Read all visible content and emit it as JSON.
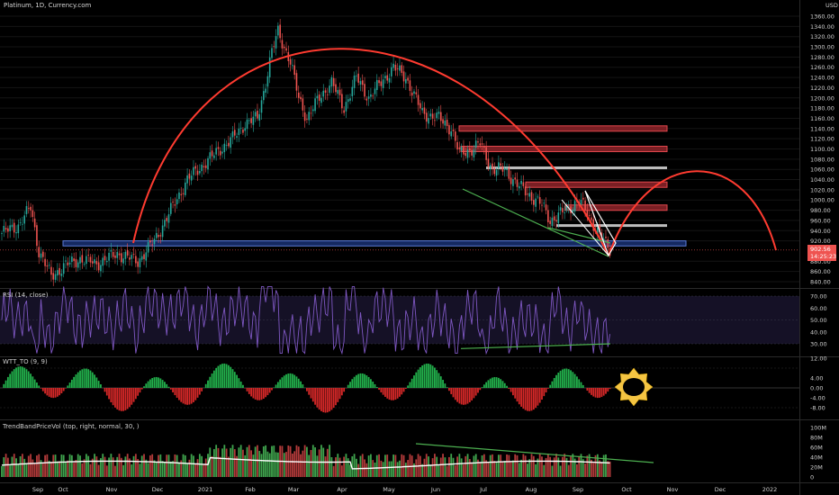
{
  "chart_data": {
    "title": "Platinum, 1D, Currency.com",
    "currency": "USD",
    "type": "candlestick",
    "time_labels": [
      "Sep",
      "Oct",
      "Nov",
      "Dec",
      "2021",
      "Feb",
      "Mar",
      "Apr",
      "May",
      "Jun",
      "Jul",
      "Aug",
      "Sep",
      "Oct",
      "Nov",
      "Dec",
      "2022"
    ],
    "price_ticks": [
      1360,
      1340,
      1320,
      1300,
      1280,
      1260,
      1240,
      1220,
      1200,
      1180,
      1160,
      1140,
      1120,
      1100,
      1080,
      1060,
      1040,
      1020,
      1000,
      980,
      960,
      940,
      920,
      880,
      860,
      840
    ],
    "last_price": "902.56",
    "countdown": "14:25:23",
    "price_anchors": [
      [
        0,
        935
      ],
      [
        8,
        950
      ],
      [
        14,
        985
      ],
      [
        18,
        900
      ],
      [
        24,
        850
      ],
      [
        30,
        870
      ],
      [
        38,
        885
      ],
      [
        46,
        875
      ],
      [
        56,
        895
      ],
      [
        66,
        880
      ],
      [
        74,
        920
      ],
      [
        82,
        980
      ],
      [
        90,
        1040
      ],
      [
        98,
        1070
      ],
      [
        106,
        1100
      ],
      [
        112,
        1120
      ],
      [
        118,
        1150
      ],
      [
        124,
        1160
      ],
      [
        128,
        1230
      ],
      [
        131,
        1290
      ],
      [
        134,
        1330
      ],
      [
        137,
        1300
      ],
      [
        140,
        1270
      ],
      [
        144,
        1200
      ],
      [
        148,
        1160
      ],
      [
        154,
        1200
      ],
      [
        160,
        1230
      ],
      [
        166,
        1180
      ],
      [
        172,
        1240
      ],
      [
        178,
        1200
      ],
      [
        184,
        1230
      ],
      [
        190,
        1260
      ],
      [
        196,
        1240
      ],
      [
        204,
        1170
      ],
      [
        212,
        1160
      ],
      [
        218,
        1140
      ],
      [
        222,
        1090
      ],
      [
        228,
        1100
      ],
      [
        232,
        1110
      ],
      [
        238,
        1060
      ],
      [
        244,
        1060
      ],
      [
        250,
        1030
      ],
      [
        256,
        1010
      ],
      [
        262,
        990
      ],
      [
        266,
        960
      ],
      [
        272,
        975
      ],
      [
        280,
        1000
      ],
      [
        286,
        960
      ],
      [
        292,
        918
      ],
      [
        295,
        902
      ]
    ],
    "levels": {
      "red_zones": [
        1140,
        1100,
        1030,
        985
      ],
      "white_lines": [
        1063,
        950
      ],
      "blue_support": [
        910,
        920
      ],
      "current_line": 902
    },
    "rsi": {
      "title": "RSI (14, close)",
      "ticks": [
        70,
        60,
        50,
        40,
        30
      ],
      "upper_band": 70,
      "lower_band": 30
    },
    "wtt": {
      "title": "WTT_TO (9, 9)",
      "ticks": [
        "12.00",
        "4.00",
        "0.00",
        "-4.00",
        "-8.00"
      ]
    },
    "volume": {
      "title": "TrendBandPriceVol (top, right, normal, 30, )",
      "ticks": [
        "100M",
        "80M",
        "60M",
        "40M",
        "20M",
        "0"
      ]
    },
    "colors": {
      "up": "#26a69a",
      "down": "#ef5350",
      "arc": "#ff3b30",
      "trend_green": "#4caf50",
      "rsi_line": "#7e57c2",
      "blue_band": "#1e3a8a",
      "price_tag": "#ef5350"
    },
    "sun_icon": "sun-icon"
  }
}
